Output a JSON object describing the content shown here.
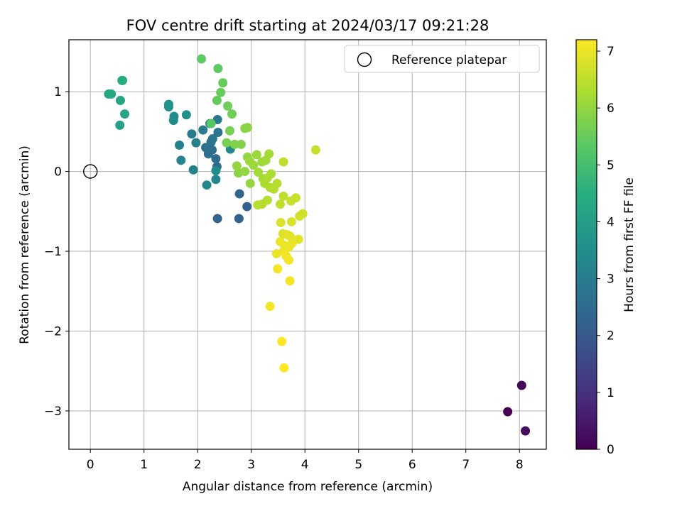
{
  "chart_data": {
    "type": "scatter",
    "title": "FOV centre drift starting at 2024/03/17 09:21:28",
    "xlabel": "Angular distance from reference (arcmin)",
    "ylabel": "Rotation from reference (arcmin)",
    "xlim": [
      -0.4,
      8.5
    ],
    "ylim": [
      -3.48,
      1.65
    ],
    "xticks": [
      0,
      1,
      2,
      3,
      4,
      5,
      6,
      7,
      8
    ],
    "yticks": [
      -3,
      -2,
      -1,
      0,
      1
    ],
    "xtick_labels": [
      "0",
      "1",
      "2",
      "3",
      "4",
      "5",
      "6",
      "7",
      "8"
    ],
    "ytick_labels": [
      "−3",
      "−2",
      "−1",
      "0",
      "1"
    ],
    "grid": true,
    "legend": {
      "position": "top-right",
      "label": "Reference platepar"
    },
    "reference_point": {
      "x": 0,
      "y": 0
    },
    "colorbar": {
      "label": "Hours from first FF file",
      "range": [
        0,
        7.2
      ],
      "ticks": [
        0,
        1,
        2,
        3,
        4,
        5,
        6,
        7
      ],
      "tick_labels": [
        "0",
        "1",
        "2",
        "3",
        "4",
        "5",
        "6",
        "7"
      ],
      "colormap": "viridis"
    },
    "points": [
      {
        "x": 7.78,
        "y": -3.01,
        "t": 0.0
      },
      {
        "x": 8.04,
        "y": -2.68,
        "t": 0.1
      },
      {
        "x": 8.11,
        "y": -3.25,
        "t": 0.2
      },
      {
        "x": 2.92,
        "y": -0.44,
        "t": 2.2
      },
      {
        "x": 2.77,
        "y": -0.59,
        "t": 2.3
      },
      {
        "x": 2.37,
        "y": -0.59,
        "t": 2.3
      },
      {
        "x": 2.78,
        "y": -0.28,
        "t": 2.4
      },
      {
        "x": 2.36,
        "y": 0.06,
        "t": 2.5
      },
      {
        "x": 2.34,
        "y": 0.16,
        "t": 2.5
      },
      {
        "x": 2.27,
        "y": 0.27,
        "t": 2.6
      },
      {
        "x": 2.2,
        "y": 0.22,
        "t": 2.6
      },
      {
        "x": 2.15,
        "y": 0.3,
        "t": 2.7
      },
      {
        "x": 2.25,
        "y": 0.37,
        "t": 2.7
      },
      {
        "x": 2.28,
        "y": 0.41,
        "t": 2.8
      },
      {
        "x": 2.38,
        "y": 0.49,
        "t": 2.8
      },
      {
        "x": 2.23,
        "y": 0.6,
        "t": 2.9
      },
      {
        "x": 2.37,
        "y": 0.65,
        "t": 2.9
      },
      {
        "x": 2.1,
        "y": 0.52,
        "t": 3.0
      },
      {
        "x": 1.89,
        "y": 0.47,
        "t": 3.0
      },
      {
        "x": 1.97,
        "y": 0.36,
        "t": 3.1
      },
      {
        "x": 1.66,
        "y": 0.33,
        "t": 3.1
      },
      {
        "x": 1.69,
        "y": 0.14,
        "t": 3.2
      },
      {
        "x": 1.92,
        "y": 0.02,
        "t": 3.2
      },
      {
        "x": 2.17,
        "y": -0.17,
        "t": 3.3
      },
      {
        "x": 2.34,
        "y": -0.1,
        "t": 3.3
      },
      {
        "x": 2.34,
        "y": 0.01,
        "t": 3.4
      },
      {
        "x": 2.61,
        "y": 0.28,
        "t": 3.4
      },
      {
        "x": 1.55,
        "y": 0.64,
        "t": 3.5
      },
      {
        "x": 1.56,
        "y": 0.69,
        "t": 3.5
      },
      {
        "x": 1.79,
        "y": 0.71,
        "t": 3.6
      },
      {
        "x": 1.46,
        "y": 0.81,
        "t": 3.6
      },
      {
        "x": 1.46,
        "y": 0.84,
        "t": 3.7
      },
      {
        "x": 0.55,
        "y": 0.58,
        "t": 4.1
      },
      {
        "x": 0.64,
        "y": 0.72,
        "t": 4.2
      },
      {
        "x": 0.56,
        "y": 0.89,
        "t": 4.2
      },
      {
        "x": 0.34,
        "y": 0.97,
        "t": 4.3
      },
      {
        "x": 0.39,
        "y": 0.97,
        "t": 4.3
      },
      {
        "x": 0.59,
        "y": 1.14,
        "t": 4.4
      },
      {
        "x": 0.6,
        "y": 1.14,
        "t": 4.4
      },
      {
        "x": 2.25,
        "y": 0.6,
        "t": 5.3
      },
      {
        "x": 2.07,
        "y": 1.41,
        "t": 5.4
      },
      {
        "x": 2.38,
        "y": 1.29,
        "t": 5.4
      },
      {
        "x": 2.47,
        "y": 1.11,
        "t": 5.5
      },
      {
        "x": 2.43,
        "y": 0.99,
        "t": 5.5
      },
      {
        "x": 2.36,
        "y": 0.89,
        "t": 5.5
      },
      {
        "x": 2.56,
        "y": 0.82,
        "t": 5.6
      },
      {
        "x": 2.64,
        "y": 0.72,
        "t": 5.6
      },
      {
        "x": 2.6,
        "y": 0.51,
        "t": 5.7
      },
      {
        "x": 2.54,
        "y": 0.36,
        "t": 5.7
      },
      {
        "x": 2.69,
        "y": 0.34,
        "t": 5.8
      },
      {
        "x": 2.81,
        "y": 0.34,
        "t": 5.8
      },
      {
        "x": 2.88,
        "y": 0.54,
        "t": 5.9
      },
      {
        "x": 2.93,
        "y": 0.55,
        "t": 5.9
      },
      {
        "x": 2.76,
        "y": -0.02,
        "t": 5.9
      },
      {
        "x": 2.98,
        "y": -0.15,
        "t": 6.0
      },
      {
        "x": 2.73,
        "y": 0.07,
        "t": 6.0
      },
      {
        "x": 2.88,
        "y": 0.0,
        "t": 6.0
      },
      {
        "x": 2.93,
        "y": 0.18,
        "t": 6.0
      },
      {
        "x": 2.97,
        "y": 0.13,
        "t": 6.1
      },
      {
        "x": 3.04,
        "y": 0.08,
        "t": 6.1
      },
      {
        "x": 3.1,
        "y": 0.21,
        "t": 6.1
      },
      {
        "x": 3.2,
        "y": 0.12,
        "t": 6.1
      },
      {
        "x": 3.27,
        "y": 0.14,
        "t": 6.2
      },
      {
        "x": 3.33,
        "y": 0.22,
        "t": 6.2
      },
      {
        "x": 3.13,
        "y": -0.01,
        "t": 6.2
      },
      {
        "x": 3.22,
        "y": -0.09,
        "t": 6.2
      },
      {
        "x": 3.3,
        "y": -0.08,
        "t": 6.3
      },
      {
        "x": 3.37,
        "y": -0.03,
        "t": 6.3
      },
      {
        "x": 3.25,
        "y": -0.15,
        "t": 6.3
      },
      {
        "x": 3.35,
        "y": -0.2,
        "t": 6.3
      },
      {
        "x": 3.42,
        "y": -0.22,
        "t": 6.4
      },
      {
        "x": 3.48,
        "y": -0.15,
        "t": 6.4
      },
      {
        "x": 3.12,
        "y": -0.42,
        "t": 6.4
      },
      {
        "x": 3.2,
        "y": -0.41,
        "t": 6.4
      },
      {
        "x": 3.3,
        "y": -0.36,
        "t": 6.4
      },
      {
        "x": 3.54,
        "y": -0.41,
        "t": 6.5
      },
      {
        "x": 3.6,
        "y": -0.31,
        "t": 6.5
      },
      {
        "x": 3.6,
        "y": 0.12,
        "t": 6.5
      },
      {
        "x": 3.74,
        "y": -0.37,
        "t": 6.6
      },
      {
        "x": 3.83,
        "y": -0.33,
        "t": 6.6
      },
      {
        "x": 4.2,
        "y": 0.27,
        "t": 6.6
      },
      {
        "x": 3.9,
        "y": -0.56,
        "t": 6.7
      },
      {
        "x": 3.96,
        "y": -0.53,
        "t": 6.7
      },
      {
        "x": 3.75,
        "y": -0.63,
        "t": 6.8
      },
      {
        "x": 3.55,
        "y": -0.64,
        "t": 6.8
      },
      {
        "x": 3.59,
        "y": -0.78,
        "t": 6.8
      },
      {
        "x": 3.66,
        "y": -0.79,
        "t": 6.9
      },
      {
        "x": 3.72,
        "y": -0.81,
        "t": 6.9
      },
      {
        "x": 3.79,
        "y": -0.86,
        "t": 6.9
      },
      {
        "x": 3.88,
        "y": -0.85,
        "t": 6.9
      },
      {
        "x": 3.54,
        "y": -0.88,
        "t": 7.0
      },
      {
        "x": 3.62,
        "y": -0.93,
        "t": 7.0
      },
      {
        "x": 3.7,
        "y": -0.95,
        "t": 7.0
      },
      {
        "x": 3.76,
        "y": -0.9,
        "t": 7.0
      },
      {
        "x": 3.47,
        "y": -1.03,
        "t": 7.0
      },
      {
        "x": 3.6,
        "y": -1.0,
        "t": 7.0
      },
      {
        "x": 3.65,
        "y": -1.06,
        "t": 7.1
      },
      {
        "x": 3.7,
        "y": -1.11,
        "t": 7.1
      },
      {
        "x": 3.49,
        "y": -1.22,
        "t": 7.1
      },
      {
        "x": 3.72,
        "y": -1.37,
        "t": 7.1
      },
      {
        "x": 3.35,
        "y": -1.69,
        "t": 7.1
      },
      {
        "x": 3.57,
        "y": -2.13,
        "t": 7.2
      },
      {
        "x": 3.61,
        "y": -2.46,
        "t": 7.2
      }
    ]
  }
}
